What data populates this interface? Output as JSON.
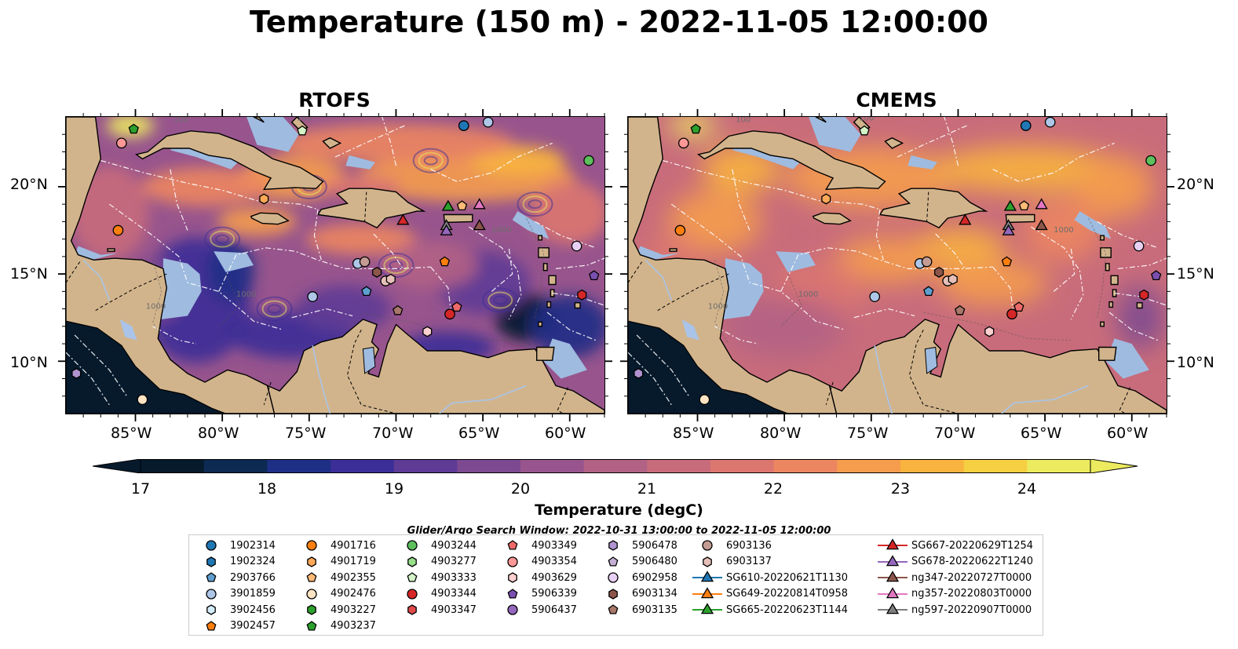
{
  "title": "Temperature (150 m) - 2022-11-05 12:00:00",
  "panels": [
    {
      "title": "RTOFS"
    },
    {
      "title": "CMEMS"
    }
  ],
  "axes": {
    "lat_ticks": [
      "20°N",
      "15°N",
      "10°N"
    ],
    "lon_ticks": [
      "85°W",
      "80°W",
      "75°W",
      "70°W",
      "65°W",
      "60°W"
    ]
  },
  "colorbar": {
    "label": "Temperature (degC)",
    "ticks": [
      "17",
      "18",
      "19",
      "20",
      "21",
      "22",
      "23",
      "24"
    ],
    "colors": [
      "#061a2c",
      "#0c2a52",
      "#1e2f86",
      "#3b2f97",
      "#5e3b95",
      "#7d4a91",
      "#98558d",
      "#b26285",
      "#c86c7b",
      "#dc7770",
      "#ec8660",
      "#f59c4d",
      "#f8b43e",
      "#f7cf42",
      "#eceb5f"
    ]
  },
  "search_window": "Glider/Argo Search Window: 2022-10-31 13:00:00 to 2022-11-05 12:00:00",
  "legend": {
    "columns": [
      [
        {
          "label": "1902314",
          "shape": "circle",
          "color": "#1f77b4"
        },
        {
          "label": "1902324",
          "shape": "hexagon",
          "color": "#1f77b4"
        },
        {
          "label": "2903766",
          "shape": "pentagon",
          "color": "#5f9fd0"
        },
        {
          "label": "3901859",
          "shape": "circle",
          "color": "#aec7e8"
        },
        {
          "label": "3902456",
          "shape": "hexagon",
          "color": "#d4ecf8"
        },
        {
          "label": "3902457",
          "shape": "pentagon",
          "color": "#ff7f0e"
        }
      ],
      [
        {
          "label": "4901716",
          "shape": "circle",
          "color": "#ff7f0e"
        },
        {
          "label": "4901719",
          "shape": "hexagon",
          "color": "#ffa857"
        },
        {
          "label": "4902355",
          "shape": "pentagon",
          "color": "#ffbb78"
        },
        {
          "label": "4902476",
          "shape": "circle",
          "color": "#ffe4c4"
        },
        {
          "label": "4903227",
          "shape": "hexagon",
          "color": "#2ca02c"
        },
        {
          "label": "4903237",
          "shape": "pentagon",
          "color": "#2ca02c"
        }
      ],
      [
        {
          "label": "4903244",
          "shape": "circle",
          "color": "#5dc05d"
        },
        {
          "label": "4903277",
          "shape": "hexagon",
          "color": "#98df8a"
        },
        {
          "label": "4903333",
          "shape": "pentagon",
          "color": "#d4f4c8"
        },
        {
          "label": "4903344",
          "shape": "circle",
          "color": "#d62728"
        },
        {
          "label": "4903347",
          "shape": "hexagon",
          "color": "#e04a4a"
        }
      ],
      [
        {
          "label": "4903349",
          "shape": "pentagon",
          "color": "#ee6a6a"
        },
        {
          "label": "4903354",
          "shape": "circle",
          "color": "#ff9896"
        },
        {
          "label": "4903629",
          "shape": "hexagon",
          "color": "#ffd0d0"
        },
        {
          "label": "5906339",
          "shape": "pentagon",
          "color": "#7b4fb0"
        },
        {
          "label": "5906437",
          "shape": "circle",
          "color": "#9467bd"
        }
      ],
      [
        {
          "label": "5906478",
          "shape": "hexagon",
          "color": "#b093d0"
        },
        {
          "label": "5906480",
          "shape": "pentagon",
          "color": "#c5b0d5"
        },
        {
          "label": "6902958",
          "shape": "circle",
          "color": "#e8d0f4"
        },
        {
          "label": "6903134",
          "shape": "hexagon",
          "color": "#8c564b"
        },
        {
          "label": "6903135",
          "shape": "pentagon",
          "color": "#a8786a"
        }
      ],
      [
        {
          "label": "6903136",
          "shape": "circle",
          "color": "#c49c94"
        },
        {
          "label": "6903137",
          "shape": "hexagon",
          "color": "#e6c0b8"
        },
        {
          "label": "SG610-20220621T1130",
          "shape": "triangle-line",
          "color": "#1f77b4"
        },
        {
          "label": "SG649-20220814T0958",
          "shape": "triangle-line",
          "color": "#ff7f0e"
        },
        {
          "label": "SG665-20220623T1144",
          "shape": "triangle-line",
          "color": "#2ca02c"
        }
      ],
      [
        {
          "label": "SG667-20220629T1254",
          "shape": "triangle-line",
          "color": "#d62728"
        },
        {
          "label": "SG678-20220622T1240",
          "shape": "triangle-line",
          "color": "#9467bd"
        },
        {
          "label": "ng347-20220727T0000",
          "shape": "triangle-line",
          "color": "#8c564b"
        },
        {
          "label": "ng357-20220803T0000",
          "shape": "triangle-line",
          "color": "#e377c2"
        },
        {
          "label": "ng597-20220907T0000",
          "shape": "triangle-line",
          "color": "#7f7f7f"
        }
      ]
    ]
  },
  "map_extent": {
    "lon_min": -89,
    "lon_max": -58,
    "lat_min": 7,
    "lat_max": 24
  },
  "platforms": [
    {
      "lon": -85.1,
      "lat": 23.3,
      "shape": "pentagon",
      "color": "#2ca02c"
    },
    {
      "lon": -85.8,
      "lat": 22.5,
      "shape": "circle",
      "color": "#ff9896"
    },
    {
      "lon": -75.4,
      "lat": 23.2,
      "shape": "pentagon",
      "color": "#d4f4c8"
    },
    {
      "lon": -66.1,
      "lat": 23.5,
      "shape": "circle",
      "color": "#1f77b4"
    },
    {
      "lon": -64.7,
      "lat": 23.7,
      "shape": "circle",
      "color": "#aec7e8"
    },
    {
      "lon": -58.9,
      "lat": 21.5,
      "shape": "circle",
      "color": "#5dc05d"
    },
    {
      "lon": -77.6,
      "lat": 19.3,
      "shape": "hexagon",
      "color": "#ffa857"
    },
    {
      "lon": -86.0,
      "lat": 17.5,
      "shape": "circle",
      "color": "#ff7f0e"
    },
    {
      "lon": -69.6,
      "lat": 18.1,
      "shape": "triangle",
      "color": "#d62728"
    },
    {
      "lon": -67.0,
      "lat": 18.9,
      "shape": "triangle",
      "color": "#2ca02c"
    },
    {
      "lon": -65.2,
      "lat": 19.0,
      "shape": "triangle",
      "color": "#e377c2"
    },
    {
      "lon": -66.2,
      "lat": 18.9,
      "shape": "pentagon",
      "color": "#ffbb78"
    },
    {
      "lon": -67.1,
      "lat": 17.8,
      "shape": "triangle",
      "color": "#7f7f7f"
    },
    {
      "lon": -67.1,
      "lat": 17.5,
      "shape": "triangle",
      "color": "#9467bd"
    },
    {
      "lon": -65.2,
      "lat": 17.8,
      "shape": "triangle",
      "color": "#8c564b"
    },
    {
      "lon": -59.6,
      "lat": 16.6,
      "shape": "circle",
      "color": "#e8d0f4"
    },
    {
      "lon": -72.2,
      "lat": 15.6,
      "shape": "circle",
      "color": "#aec7e8"
    },
    {
      "lon": -71.8,
      "lat": 15.7,
      "shape": "circle",
      "color": "#c49c94"
    },
    {
      "lon": -67.2,
      "lat": 15.7,
      "shape": "pentagon",
      "color": "#ff7f0e"
    },
    {
      "lon": -71.1,
      "lat": 15.1,
      "shape": "hexagon",
      "color": "#8c564b"
    },
    {
      "lon": -70.6,
      "lat": 14.6,
      "shape": "circle",
      "color": "#e6c0b8"
    },
    {
      "lon": -70.3,
      "lat": 14.7,
      "shape": "hexagon",
      "color": "#e6c0b8"
    },
    {
      "lon": -58.6,
      "lat": 14.9,
      "shape": "pentagon",
      "color": "#7b4fb0"
    },
    {
      "lon": -74.8,
      "lat": 13.7,
      "shape": "circle",
      "color": "#aec7e8"
    },
    {
      "lon": -71.7,
      "lat": 14.0,
      "shape": "pentagon",
      "color": "#5f9fd0"
    },
    {
      "lon": -59.3,
      "lat": 13.8,
      "shape": "hexagon",
      "color": "#d62728"
    },
    {
      "lon": -69.9,
      "lat": 12.9,
      "shape": "pentagon",
      "color": "#a8786a"
    },
    {
      "lon": -66.5,
      "lat": 13.1,
      "shape": "pentagon",
      "color": "#ee6a6a"
    },
    {
      "lon": -66.9,
      "lat": 12.7,
      "shape": "circle",
      "color": "#d62728"
    },
    {
      "lon": -68.2,
      "lat": 11.7,
      "shape": "hexagon",
      "color": "#ffd0d0"
    },
    {
      "lon": -88.4,
      "lat": 9.3,
      "shape": "hexagon",
      "color": "#b093d0"
    },
    {
      "lon": -84.6,
      "lat": 7.8,
      "shape": "circle",
      "color": "#ffe4c4"
    }
  ]
}
